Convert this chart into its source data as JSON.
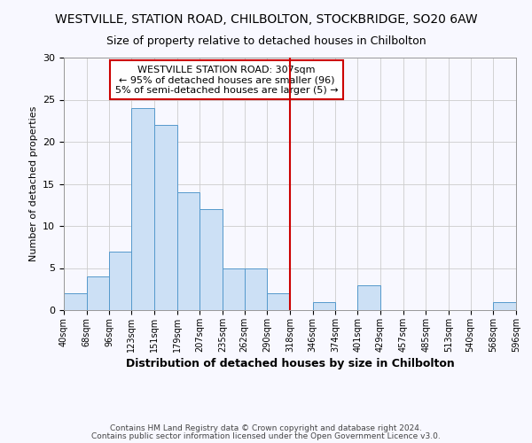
{
  "title": "WESTVILLE, STATION ROAD, CHILBOLTON, STOCKBRIDGE, SO20 6AW",
  "subtitle": "Size of property relative to detached houses in Chilbolton",
  "xlabel": "Distribution of detached houses by size in Chilbolton",
  "ylabel": "Number of detached properties",
  "bin_edges": [
    40,
    68,
    96,
    123,
    151,
    179,
    207,
    235,
    262,
    290,
    318,
    346,
    374,
    401,
    429,
    457,
    485,
    513,
    540,
    568,
    596
  ],
  "bar_heights": [
    2,
    4,
    7,
    24,
    22,
    14,
    12,
    5,
    5,
    2,
    0,
    1,
    0,
    3,
    0,
    0,
    0,
    0,
    0,
    1
  ],
  "bar_color": "#cce0f5",
  "bar_edge_color": "#5599cc",
  "vline_x": 318,
  "vline_color": "#cc0000",
  "ylim": [
    0,
    30
  ],
  "yticks": [
    0,
    5,
    10,
    15,
    20,
    25,
    30
  ],
  "annotation_title": "WESTVILLE STATION ROAD: 307sqm",
  "annotation_line1": "← 95% of detached houses are smaller (96)",
  "annotation_line2": "5% of semi-detached houses are larger (5) →",
  "annotation_box_color": "#ffffff",
  "annotation_box_edge_color": "#cc0000",
  "footnote1": "Contains HM Land Registry data © Crown copyright and database right 2024.",
  "footnote2": "Contains public sector information licensed under the Open Government Licence v3.0.",
  "background_color": "#f8f8ff",
  "grid_color": "#cccccc"
}
